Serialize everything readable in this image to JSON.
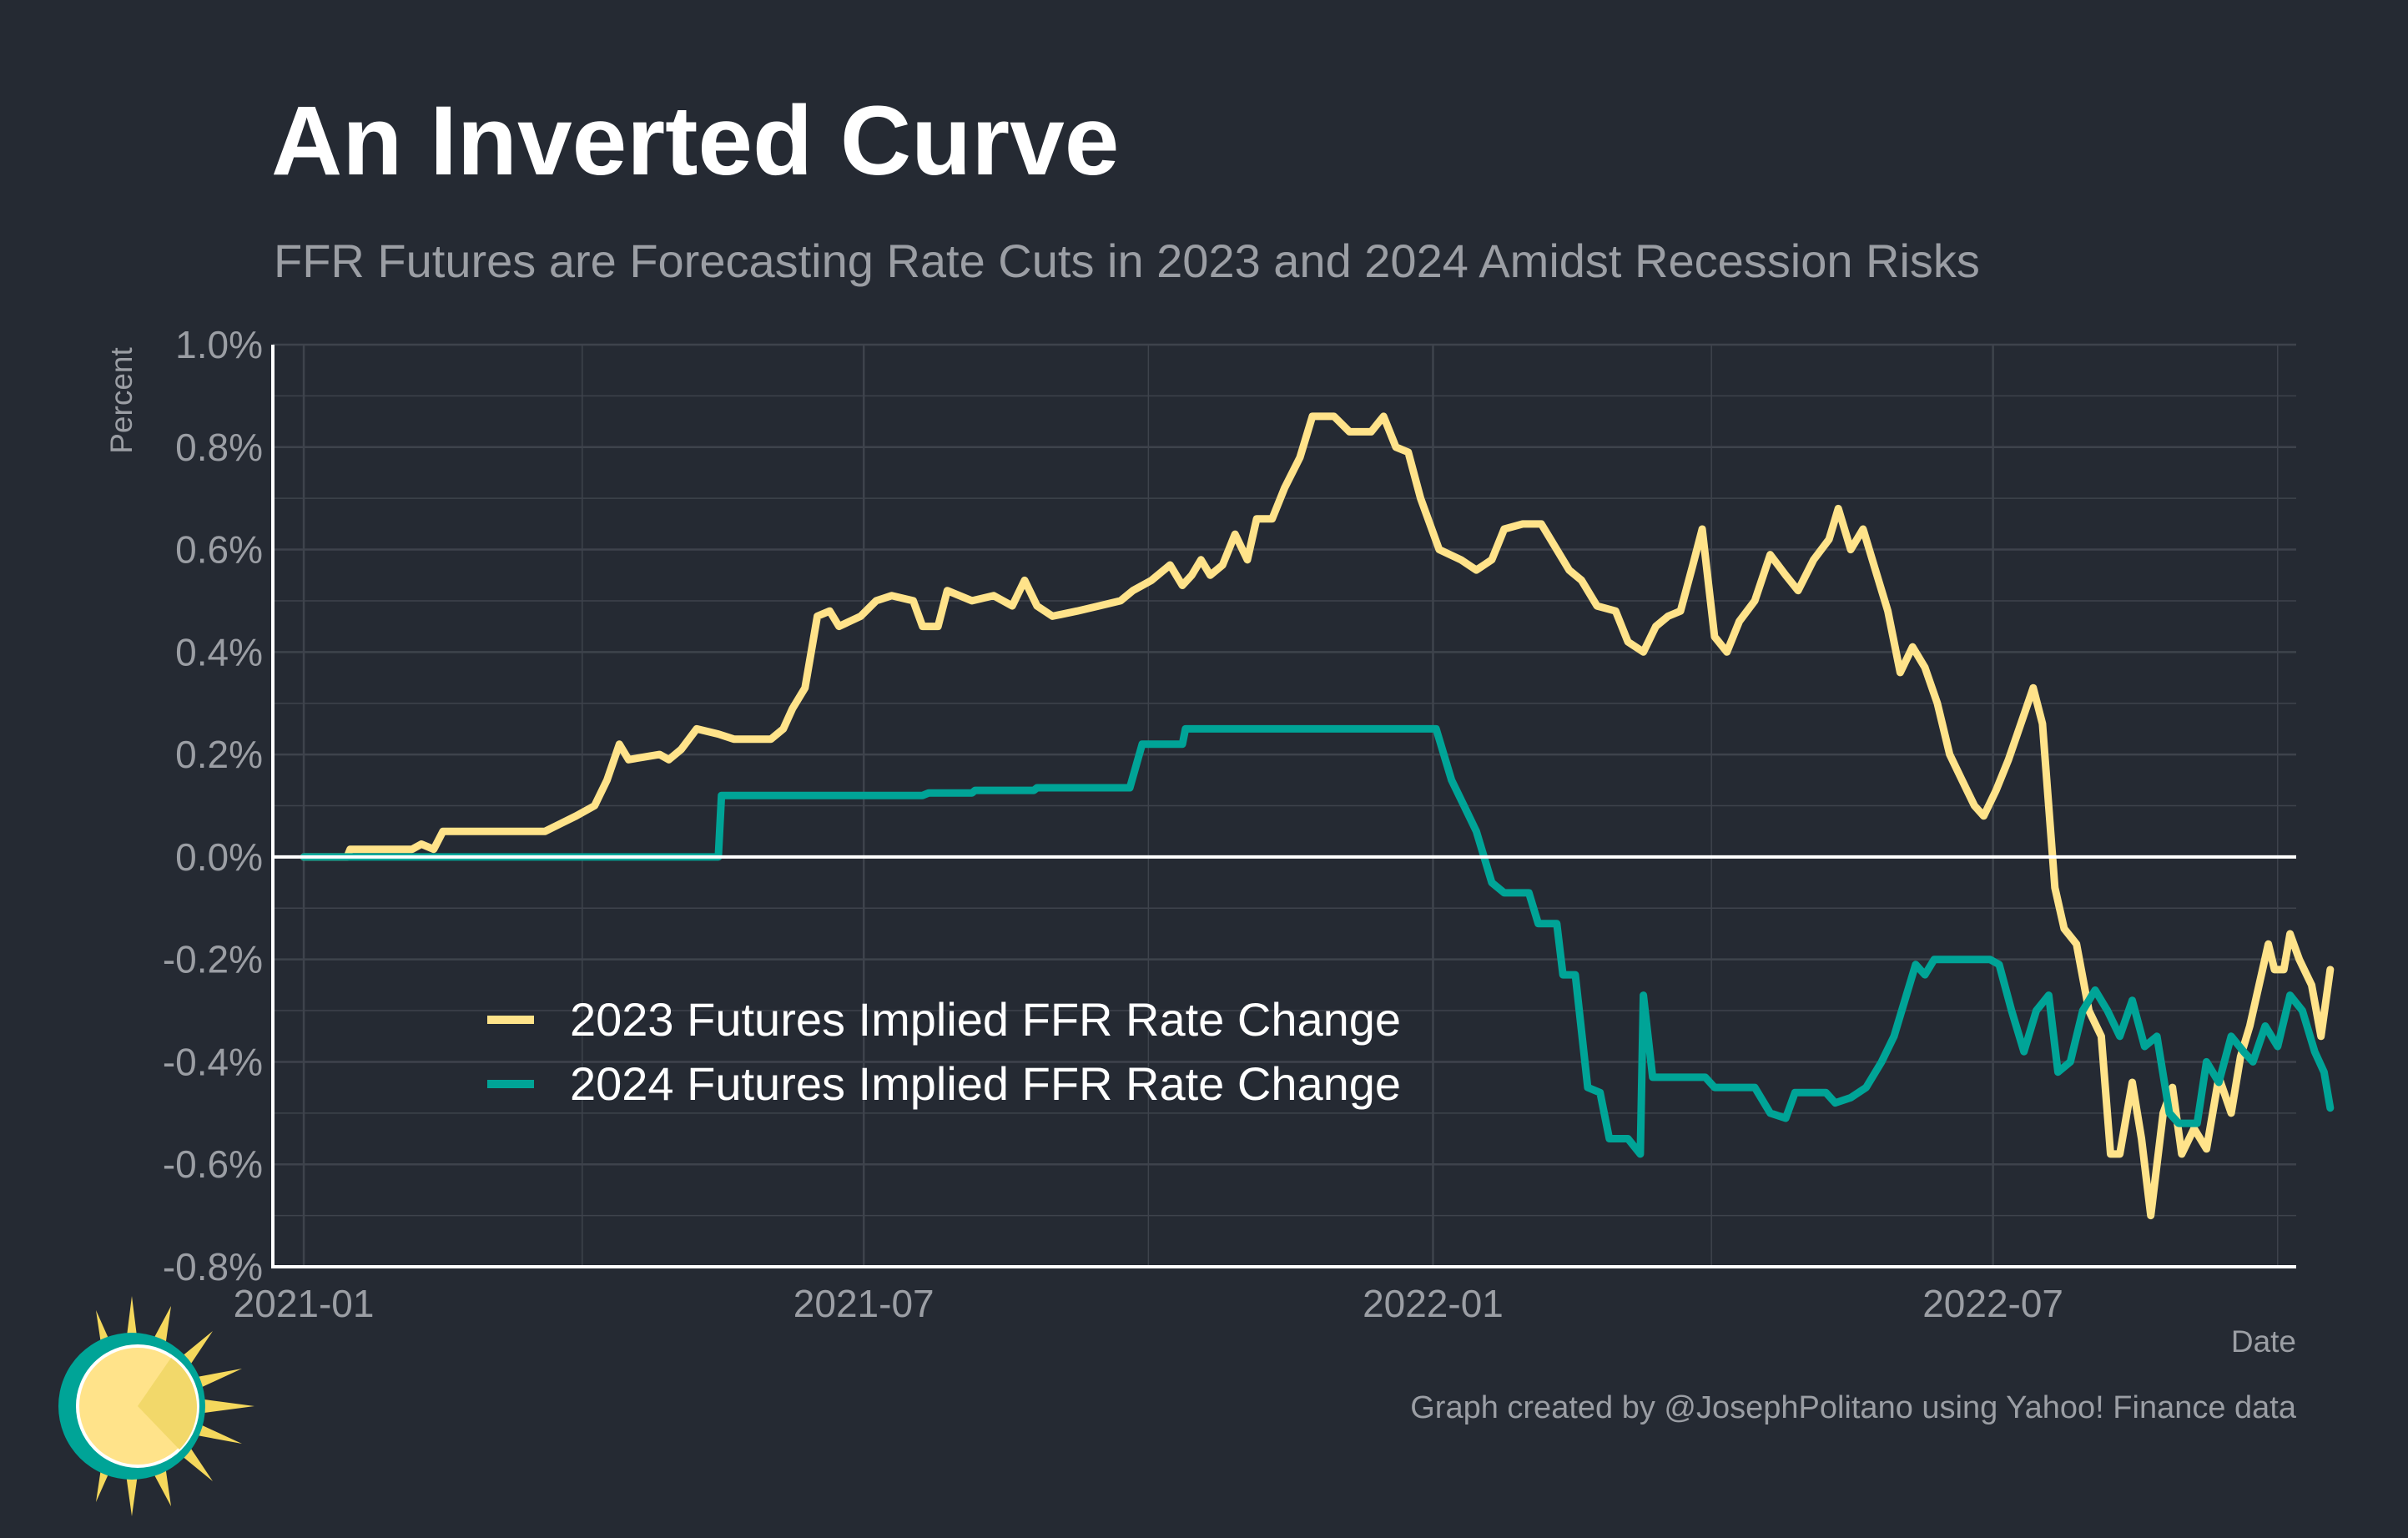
{
  "title": "An Inverted Curve",
  "subtitle": "FFR Futures are Forecasting Rate Cuts in 2023 and 2024 Amidst Recession Risks",
  "caption": "Graph created by @JosephPolitano using Yahoo! Finance data",
  "colors": {
    "background": "#252a33",
    "grid": "#3e434c",
    "axis": "#ffffff",
    "tick_text": "#9b9ea4",
    "series_2023": "#ffe38a",
    "series_2024": "#00a497"
  },
  "chart_data": {
    "type": "line",
    "title": "An Inverted Curve",
    "subtitle": "FFR Futures are Forecasting Rate Cuts in 2023 and 2024 Amidst Recession Risks",
    "xlabel": "Date",
    "ylabel": "Percent",
    "xlim": [
      "2020-12-22",
      "2022-10-07"
    ],
    "ylim": [
      -0.8,
      1.0
    ],
    "x_ticks": [
      "2021-01-01",
      "2021-07-01",
      "2022-01-01",
      "2022-07-01"
    ],
    "x_tick_labels": [
      "2021-01",
      "2021-07",
      "2022-01",
      "2022-07"
    ],
    "y_ticks": [
      -0.8,
      -0.6,
      -0.4,
      -0.2,
      0.0,
      0.2,
      0.4,
      0.6,
      0.8,
      1.0
    ],
    "y_tick_labels": [
      "-0.8%",
      "-0.6%",
      "-0.4%",
      "-0.2%",
      "0.0%",
      "0.2%",
      "0.4%",
      "0.6%",
      "0.8%",
      "1.0%"
    ],
    "grid": true,
    "zero_line": true,
    "legend_position": "bottom-left",
    "series": [
      {
        "name": "2023 Futures Implied FFR Rate Change",
        "color": "#ffe38a",
        "points": [
          [
            "2021-01-01",
            0.0
          ],
          [
            "2021-01-15",
            0.0
          ],
          [
            "2021-01-16",
            0.015
          ],
          [
            "2021-02-05",
            0.015
          ],
          [
            "2021-02-08",
            0.025
          ],
          [
            "2021-02-12",
            0.015
          ],
          [
            "2021-02-15",
            0.05
          ],
          [
            "2021-03-20",
            0.05
          ],
          [
            "2021-03-25",
            0.065
          ],
          [
            "2021-03-30",
            0.08
          ],
          [
            "2021-04-05",
            0.1
          ],
          [
            "2021-04-09",
            0.15
          ],
          [
            "2021-04-13",
            0.22
          ],
          [
            "2021-04-16",
            0.19
          ],
          [
            "2021-04-26",
            0.2
          ],
          [
            "2021-04-29",
            0.19
          ],
          [
            "2021-05-03",
            0.21
          ],
          [
            "2021-05-08",
            0.25
          ],
          [
            "2021-05-15",
            0.24
          ],
          [
            "2021-05-20",
            0.23
          ],
          [
            "2021-06-01",
            0.23
          ],
          [
            "2021-06-05",
            0.25
          ],
          [
            "2021-06-08",
            0.29
          ],
          [
            "2021-06-12",
            0.33
          ],
          [
            "2021-06-16",
            0.47
          ],
          [
            "2021-06-20",
            0.48
          ],
          [
            "2021-06-23",
            0.45
          ],
          [
            "2021-06-30",
            0.47
          ],
          [
            "2021-07-05",
            0.5
          ],
          [
            "2021-07-10",
            0.51
          ],
          [
            "2021-07-17",
            0.5
          ],
          [
            "2021-07-20",
            0.45
          ],
          [
            "2021-07-25",
            0.45
          ],
          [
            "2021-07-28",
            0.52
          ],
          [
            "2021-08-05",
            0.5
          ],
          [
            "2021-08-12",
            0.51
          ],
          [
            "2021-08-18",
            0.49
          ],
          [
            "2021-08-22",
            0.54
          ],
          [
            "2021-08-26",
            0.49
          ],
          [
            "2021-08-31",
            0.47
          ],
          [
            "2021-09-08",
            0.48
          ],
          [
            "2021-09-15",
            0.49
          ],
          [
            "2021-09-22",
            0.5
          ],
          [
            "2021-09-26",
            0.52
          ],
          [
            "2021-10-02",
            0.54
          ],
          [
            "2021-10-08",
            0.57
          ],
          [
            "2021-10-12",
            0.53
          ],
          [
            "2021-10-15",
            0.55
          ],
          [
            "2021-10-18",
            0.58
          ],
          [
            "2021-10-21",
            0.55
          ],
          [
            "2021-10-25",
            0.57
          ],
          [
            "2021-10-29",
            0.63
          ],
          [
            "2021-11-02",
            0.58
          ],
          [
            "2021-11-05",
            0.66
          ],
          [
            "2021-11-10",
            0.66
          ],
          [
            "2021-11-14",
            0.72
          ],
          [
            "2021-11-19",
            0.78
          ],
          [
            "2021-11-23",
            0.86
          ],
          [
            "2021-11-30",
            0.86
          ],
          [
            "2021-12-05",
            0.83
          ],
          [
            "2021-12-12",
            0.83
          ],
          [
            "2021-12-16",
            0.86
          ],
          [
            "2021-12-20",
            0.8
          ],
          [
            "2021-12-24",
            0.79
          ],
          [
            "2021-12-28",
            0.7
          ],
          [
            "2022-01-03",
            0.6
          ],
          [
            "2022-01-10",
            0.58
          ],
          [
            "2022-01-15",
            0.56
          ],
          [
            "2022-01-20",
            0.58
          ],
          [
            "2022-01-24",
            0.64
          ],
          [
            "2022-01-30",
            0.65
          ],
          [
            "2022-02-05",
            0.65
          ],
          [
            "2022-02-10",
            0.6
          ],
          [
            "2022-02-14",
            0.56
          ],
          [
            "2022-02-18",
            0.54
          ],
          [
            "2022-02-23",
            0.49
          ],
          [
            "2022-03-01",
            0.48
          ],
          [
            "2022-03-05",
            0.42
          ],
          [
            "2022-03-10",
            0.4
          ],
          [
            "2022-03-14",
            0.45
          ],
          [
            "2022-03-18",
            0.47
          ],
          [
            "2022-03-22",
            0.48
          ],
          [
            "2022-03-26",
            0.57
          ],
          [
            "2022-03-29",
            0.64
          ],
          [
            "2022-04-02",
            0.43
          ],
          [
            "2022-04-06",
            0.4
          ],
          [
            "2022-04-10",
            0.46
          ],
          [
            "2022-04-15",
            0.5
          ],
          [
            "2022-04-20",
            0.59
          ],
          [
            "2022-04-25",
            0.55
          ],
          [
            "2022-04-29",
            0.52
          ],
          [
            "2022-05-04",
            0.58
          ],
          [
            "2022-05-09",
            0.62
          ],
          [
            "2022-05-12",
            0.68
          ],
          [
            "2022-05-16",
            0.6
          ],
          [
            "2022-05-20",
            0.64
          ],
          [
            "2022-05-24",
            0.56
          ],
          [
            "2022-05-28",
            0.48
          ],
          [
            "2022-06-01",
            0.36
          ],
          [
            "2022-06-05",
            0.41
          ],
          [
            "2022-06-09",
            0.37
          ],
          [
            "2022-06-13",
            0.3
          ],
          [
            "2022-06-17",
            0.2
          ],
          [
            "2022-06-21",
            0.15
          ],
          [
            "2022-06-25",
            0.1
          ],
          [
            "2022-06-28",
            0.08
          ],
          [
            "2022-07-02",
            0.13
          ],
          [
            "2022-07-06",
            0.19
          ],
          [
            "2022-07-10",
            0.26
          ],
          [
            "2022-07-14",
            0.33
          ],
          [
            "2022-07-17",
            0.26
          ],
          [
            "2022-07-21",
            -0.06
          ],
          [
            "2022-07-24",
            -0.14
          ],
          [
            "2022-07-28",
            -0.17
          ],
          [
            "2022-08-01",
            -0.3
          ],
          [
            "2022-08-05",
            -0.35
          ],
          [
            "2022-08-08",
            -0.58
          ],
          [
            "2022-08-11",
            -0.58
          ],
          [
            "2022-08-15",
            -0.44
          ],
          [
            "2022-08-18",
            -0.55
          ],
          [
            "2022-08-21",
            -0.7
          ],
          [
            "2022-08-25",
            -0.5
          ],
          [
            "2022-08-28",
            -0.45
          ],
          [
            "2022-08-31",
            -0.58
          ],
          [
            "2022-09-04",
            -0.53
          ],
          [
            "2022-09-08",
            -0.57
          ],
          [
            "2022-09-12",
            -0.43
          ],
          [
            "2022-09-16",
            -0.5
          ],
          [
            "2022-09-19",
            -0.39
          ],
          [
            "2022-09-22",
            -0.33
          ],
          [
            "2022-09-25",
            -0.25
          ],
          [
            "2022-09-28",
            -0.17
          ],
          [
            "2022-09-30",
            -0.22
          ],
          [
            "2022-10-03",
            -0.22
          ],
          [
            "2022-10-05",
            -0.15
          ],
          [
            "2022-10-08",
            -0.2
          ],
          [
            "2022-10-12",
            -0.25
          ],
          [
            "2022-10-15",
            -0.35
          ],
          [
            "2022-10-18",
            -0.22
          ]
        ]
      },
      {
        "name": "2024 Futures Implied FFR Rate Change",
        "color": "#00a497",
        "points": [
          [
            "2021-01-01",
            0.0
          ],
          [
            "2021-05-15",
            0.0
          ],
          [
            "2021-05-16",
            0.12
          ],
          [
            "2021-07-20",
            0.12
          ],
          [
            "2021-07-22",
            0.125
          ],
          [
            "2021-08-05",
            0.125
          ],
          [
            "2021-08-06",
            0.13
          ],
          [
            "2021-08-25",
            0.13
          ],
          [
            "2021-08-26",
            0.135
          ],
          [
            "2021-09-25",
            0.135
          ],
          [
            "2021-09-29",
            0.22
          ],
          [
            "2021-10-12",
            0.22
          ],
          [
            "2021-10-13",
            0.25
          ],
          [
            "2022-01-02",
            0.25
          ],
          [
            "2022-01-07",
            0.15
          ],
          [
            "2022-01-11",
            0.1
          ],
          [
            "2022-01-15",
            0.05
          ],
          [
            "2022-01-20",
            -0.05
          ],
          [
            "2022-01-24",
            -0.07
          ],
          [
            "2022-02-01",
            -0.07
          ],
          [
            "2022-02-04",
            -0.13
          ],
          [
            "2022-02-10",
            -0.13
          ],
          [
            "2022-02-12",
            -0.23
          ],
          [
            "2022-02-16",
            -0.23
          ],
          [
            "2022-02-20",
            -0.45
          ],
          [
            "2022-02-24",
            -0.46
          ],
          [
            "2022-02-27",
            -0.55
          ],
          [
            "2022-03-05",
            -0.55
          ],
          [
            "2022-03-09",
            -0.58
          ],
          [
            "2022-03-10",
            -0.27
          ],
          [
            "2022-03-13",
            -0.43
          ],
          [
            "2022-03-30",
            -0.43
          ],
          [
            "2022-04-02",
            -0.45
          ],
          [
            "2022-04-15",
            -0.45
          ],
          [
            "2022-04-20",
            -0.5
          ],
          [
            "2022-04-25",
            -0.51
          ],
          [
            "2022-04-28",
            -0.46
          ],
          [
            "2022-05-08",
            -0.46
          ],
          [
            "2022-05-11",
            -0.48
          ],
          [
            "2022-05-16",
            -0.47
          ],
          [
            "2022-05-21",
            -0.45
          ],
          [
            "2022-05-26",
            -0.4
          ],
          [
            "2022-05-30",
            -0.35
          ],
          [
            "2022-06-03",
            -0.27
          ],
          [
            "2022-06-06",
            -0.21
          ],
          [
            "2022-06-09",
            -0.23
          ],
          [
            "2022-06-12",
            -0.2
          ],
          [
            "2022-06-30",
            -0.2
          ],
          [
            "2022-07-03",
            -0.21
          ],
          [
            "2022-07-07",
            -0.3
          ],
          [
            "2022-07-11",
            -0.38
          ],
          [
            "2022-07-15",
            -0.3
          ],
          [
            "2022-07-19",
            -0.27
          ],
          [
            "2022-07-22",
            -0.42
          ],
          [
            "2022-07-26",
            -0.4
          ],
          [
            "2022-07-30",
            -0.3
          ],
          [
            "2022-08-03",
            -0.26
          ],
          [
            "2022-08-07",
            -0.3
          ],
          [
            "2022-08-11",
            -0.35
          ],
          [
            "2022-08-15",
            -0.28
          ],
          [
            "2022-08-19",
            -0.37
          ],
          [
            "2022-08-23",
            -0.35
          ],
          [
            "2022-08-27",
            -0.5
          ],
          [
            "2022-08-30",
            -0.52
          ],
          [
            "2022-09-05",
            -0.52
          ],
          [
            "2022-09-08",
            -0.4
          ],
          [
            "2022-09-12",
            -0.44
          ],
          [
            "2022-09-16",
            -0.35
          ],
          [
            "2022-09-20",
            -0.38
          ],
          [
            "2022-09-23",
            -0.4
          ],
          [
            "2022-09-27",
            -0.33
          ],
          [
            "2022-10-01",
            -0.37
          ],
          [
            "2022-10-05",
            -0.27
          ],
          [
            "2022-10-09",
            -0.3
          ],
          [
            "2022-10-13",
            -0.38
          ],
          [
            "2022-10-16",
            -0.42
          ],
          [
            "2022-10-18",
            -0.49
          ]
        ]
      }
    ]
  }
}
